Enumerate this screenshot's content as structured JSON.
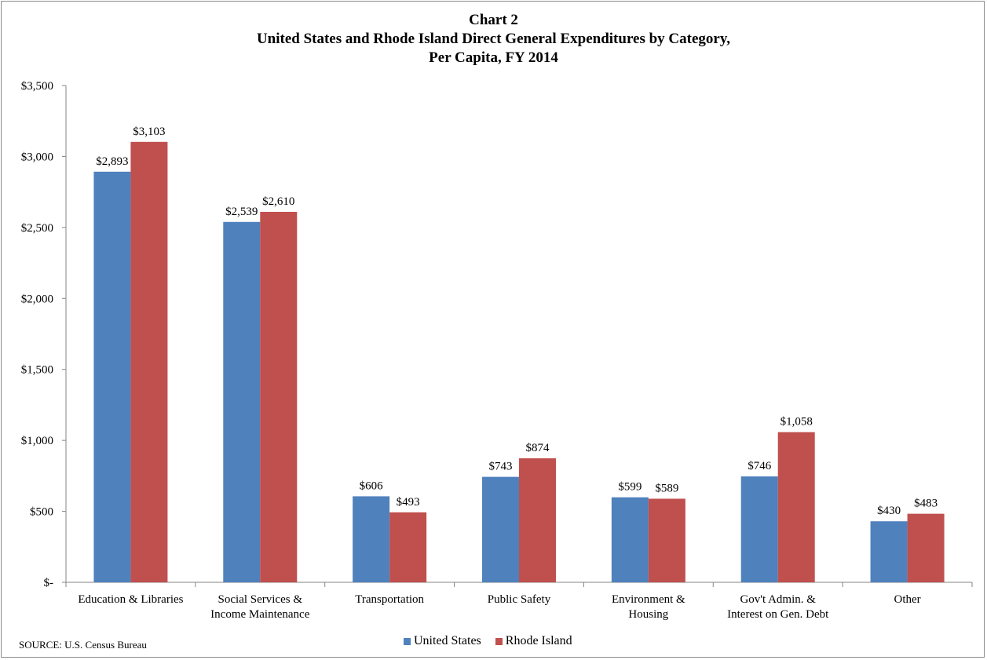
{
  "title": {
    "line1": "Chart 2",
    "line2": "United States and Rhode Island Direct General Expenditures by Category,",
    "line3": "Per Capita,  FY 2014"
  },
  "source": "SOURCE: U.S. Census Bureau",
  "chart_data": {
    "type": "bar",
    "categories": [
      [
        "Education & Libraries"
      ],
      [
        "Social Services &",
        "Income Maintenance"
      ],
      [
        "Transportation"
      ],
      [
        "Public Safety"
      ],
      [
        "Environment &",
        "Housing"
      ],
      [
        "Gov't Admin. &",
        "Interest on Gen. Debt"
      ],
      [
        "Other"
      ]
    ],
    "series": [
      {
        "name": "United States",
        "color": "#4f81bd",
        "values": [
          2893,
          2539,
          606,
          743,
          599,
          746,
          430
        ],
        "labels": [
          "$2,893",
          "$2,539",
          "$606",
          "$743",
          "$599",
          "$746",
          "$430"
        ]
      },
      {
        "name": "Rhode Island",
        "color": "#c0504d",
        "values": [
          3103,
          2610,
          493,
          874,
          589,
          1058,
          483
        ],
        "labels": [
          "$3,103",
          "$2,610",
          "$493",
          "$874",
          "$589",
          "$1,058",
          "$483"
        ]
      }
    ],
    "ylim": [
      0,
      3500
    ],
    "yticks": [
      0,
      500,
      1000,
      1500,
      2000,
      2500,
      3000,
      3500
    ],
    "ytick_labels": [
      "$-",
      "$500",
      "$1,000",
      "$1,500",
      "$2,000",
      "$2,500",
      "$3,000",
      "$3,500"
    ],
    "grid": false,
    "legend_position": "bottom"
  }
}
